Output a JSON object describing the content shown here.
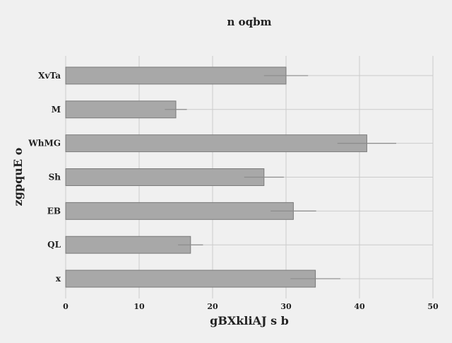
{
  "chart_data": {
    "type": "bar",
    "orientation": "horizontal",
    "title": "n oqbm",
    "xlabel": "gBXkliAJ s b",
    "ylabel": "zgpquE o",
    "categories": [
      "XvTa",
      "M",
      "WhMG",
      "Sh",
      "EB",
      "QL",
      "x"
    ],
    "values": [
      30,
      15,
      41,
      27,
      31,
      17,
      34
    ],
    "errors": [
      3,
      1.5,
      4,
      2.7,
      3.1,
      1.7,
      3.4
    ],
    "xlim": [
      0,
      50
    ],
    "xticks": [
      0,
      10,
      20,
      30,
      40,
      50
    ],
    "grid": true,
    "colors": {
      "bar_fill": "#a8a8a8",
      "bar_edge": "#7a7a7a",
      "error_bar": "#8c8c8c",
      "grid": "#cbcbcb",
      "background": "#f0f0f0"
    }
  }
}
